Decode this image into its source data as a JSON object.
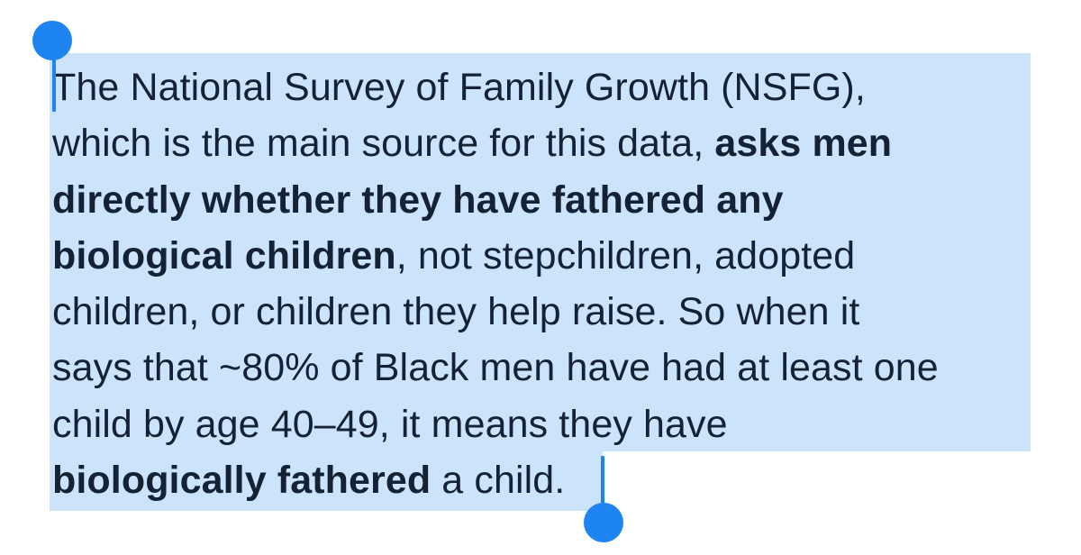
{
  "selection": {
    "highlight_color": "#cce4fb",
    "handle_color": "#1e84f2",
    "start_handle": "selection-start-handle",
    "end_handle": "selection-end-handle"
  },
  "paragraph": {
    "lines": [
      [
        {
          "t": "The National Survey of Family Growth (NSFG),",
          "b": false
        }
      ],
      [
        {
          "t": "which is the main source for this data, ",
          "b": false
        },
        {
          "t": "asks men",
          "b": true
        }
      ],
      [
        {
          "t": "directly whether they have fathered any",
          "b": true
        }
      ],
      [
        {
          "t": "biological children",
          "b": true
        },
        {
          "t": ", not stepchildren, adopted",
          "b": false
        }
      ],
      [
        {
          "t": "children, or children they help raise. So when it",
          "b": false
        }
      ],
      [
        {
          "t": "says that ~80% of Black men have had at least one",
          "b": false
        }
      ],
      [
        {
          "t": "child by age 40–49, it means they have",
          "b": false
        }
      ],
      [
        {
          "t": "biologically fathered",
          "b": true
        },
        {
          "t": " a child.",
          "b": false
        }
      ]
    ]
  }
}
